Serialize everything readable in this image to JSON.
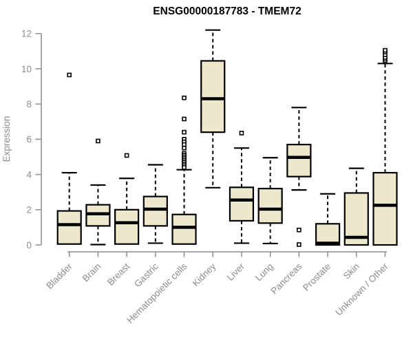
{
  "chart_data": {
    "type": "boxplot",
    "title": "ENSG00000187783 - TMEM72",
    "ylabel": "Expression",
    "xlabel": "",
    "ylim": [
      0,
      12
    ],
    "yticks": [
      0,
      2,
      4,
      6,
      8,
      10,
      12
    ],
    "grid": false,
    "legend": null,
    "categories": [
      "Bladder",
      "Brain",
      "Breast",
      "Gastric",
      "Hematopoietic cells",
      "Kidney",
      "Liver",
      "Lung",
      "Pancreas",
      "Prostate",
      "Skin",
      "Unknown / Other"
    ],
    "boxes": [
      {
        "category": "Bladder",
        "whisker_low": null,
        "q1": 0.05,
        "median": 1.15,
        "q3": 1.93,
        "whisker_high": 4.1,
        "outliers": [
          9.65
        ]
      },
      {
        "category": "Brain",
        "whisker_low": 0.02,
        "q1": 1.08,
        "median": 1.77,
        "q3": 2.28,
        "whisker_high": 3.4,
        "outliers": [
          5.9
        ]
      },
      {
        "category": "Breast",
        "whisker_low": null,
        "q1": 0.05,
        "median": 1.26,
        "q3": 2.0,
        "whisker_high": 3.78,
        "outliers": [
          5.08
        ]
      },
      {
        "category": "Gastric",
        "whisker_low": 0.1,
        "q1": 1.08,
        "median": 2.03,
        "q3": 2.75,
        "whisker_high": 4.55,
        "outliers": []
      },
      {
        "category": "Hematopoietic cells",
        "whisker_low": null,
        "q1": 0.05,
        "median": 1.0,
        "q3": 1.73,
        "whisker_high": 4.27,
        "outliers": [
          8.35,
          7.15,
          6.4,
          6.0,
          5.85,
          5.7,
          5.5,
          5.2,
          5.1,
          5.0,
          4.9,
          4.8,
          4.7,
          4.6,
          4.5,
          4.4
        ]
      },
      {
        "category": "Kidney",
        "whisker_low": 3.25,
        "q1": 6.4,
        "median": 8.3,
        "q3": 10.45,
        "whisker_high": 12.2,
        "outliers": []
      },
      {
        "category": "Liver",
        "whisker_low": 0.1,
        "q1": 1.37,
        "median": 2.55,
        "q3": 3.27,
        "whisker_high": 5.5,
        "outliers": [
          6.35
        ]
      },
      {
        "category": "Lung",
        "whisker_low": 0.08,
        "q1": 1.24,
        "median": 2.03,
        "q3": 3.2,
        "whisker_high": 4.95,
        "outliers": []
      },
      {
        "category": "Pancreas",
        "whisker_low": 3.12,
        "q1": 3.88,
        "median": 4.97,
        "q3": 5.7,
        "whisker_high": 7.8,
        "outliers": [
          0.85,
          0.02
        ]
      },
      {
        "category": "Prostate",
        "whisker_low": null,
        "q1": 0.0,
        "median": 0.1,
        "q3": 1.2,
        "whisker_high": 2.9,
        "outliers": []
      },
      {
        "category": "Skin",
        "whisker_low": null,
        "q1": 0.0,
        "median": 0.43,
        "q3": 2.95,
        "whisker_high": 4.35,
        "outliers": []
      },
      {
        "category": "Unknown / Other",
        "whisker_low": null,
        "q1": 0.0,
        "median": 2.25,
        "q3": 4.1,
        "whisker_high": 10.3,
        "outliers": [
          10.45,
          10.55,
          10.65,
          10.8,
          10.95,
          11.05
        ]
      }
    ],
    "colors": {
      "box_fill": "#EDE7CC",
      "box_border": "#000000",
      "median": "#000000",
      "whisker": "#000000",
      "axis": "#8C8C8C",
      "tick_text": "#8C8C8C",
      "title": "#000000",
      "background": "#FFFFFF"
    }
  }
}
